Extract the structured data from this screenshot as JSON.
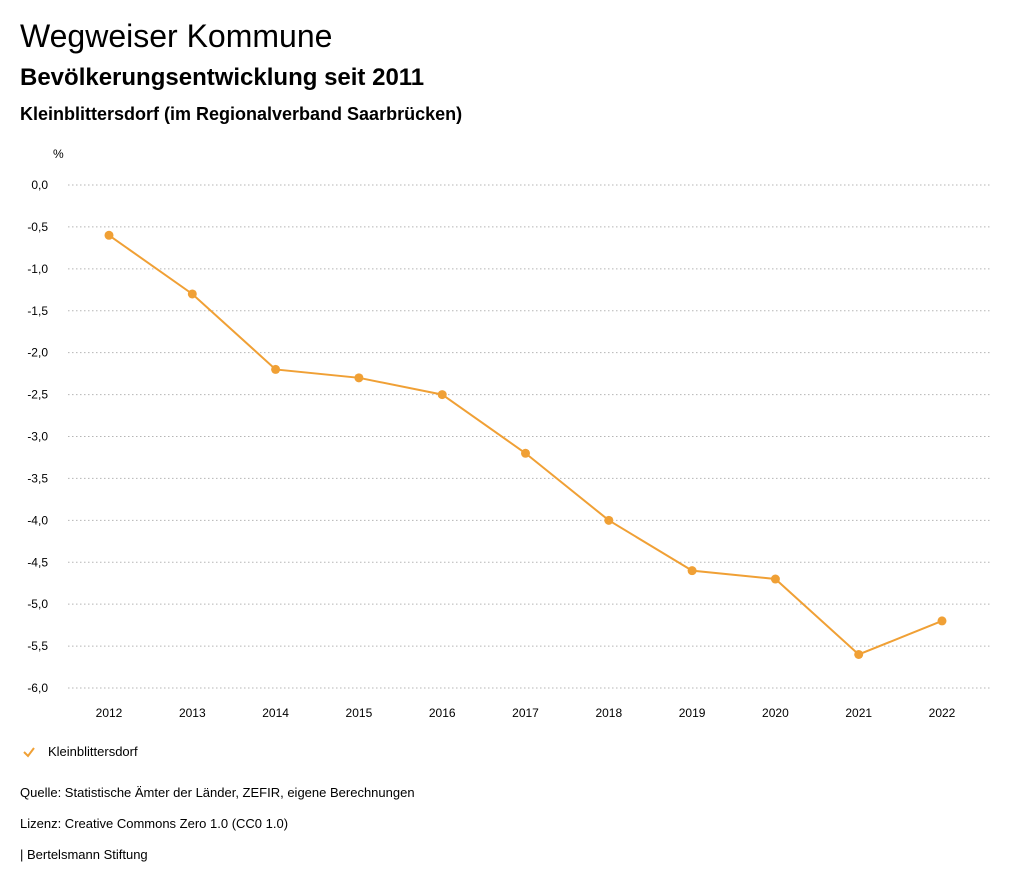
{
  "header": {
    "title": "Wegweiser Kommune",
    "subtitle": "Bevölkerungsentwicklung seit 2011",
    "place": "Kleinblittersdorf (im Regionalverband Saarbrücken)"
  },
  "chart_data": {
    "type": "line",
    "unit_label": "%",
    "x": [
      "2012",
      "2013",
      "2014",
      "2015",
      "2016",
      "2017",
      "2018",
      "2019",
      "2020",
      "2021",
      "2022"
    ],
    "series": [
      {
        "name": "Kleinblittersdorf",
        "values": [
          -0.6,
          -1.3,
          -2.2,
          -2.3,
          -2.5,
          -3.2,
          -4.0,
          -4.6,
          -4.7,
          -5.6,
          -5.2
        ]
      }
    ],
    "ylim": [
      -6.0,
      0.0
    ],
    "yticks": [
      "0,0",
      "-0,5",
      "-1,0",
      "-1,5",
      "-2,0",
      "-2,5",
      "-3,0",
      "-3,5",
      "-4,0",
      "-4,5",
      "-5,0",
      "-5,5",
      "-6,0"
    ],
    "grid": true,
    "legend_position": "bottom-left",
    "color": "#f0a035"
  },
  "footer": {
    "source": "Quelle: Statistische Ämter der Länder, ZEFIR, eigene Berechnungen",
    "license": "Lizenz: Creative Commons Zero 1.0 (CC0 1.0)",
    "brand": "| Bertelsmann Stiftung"
  }
}
